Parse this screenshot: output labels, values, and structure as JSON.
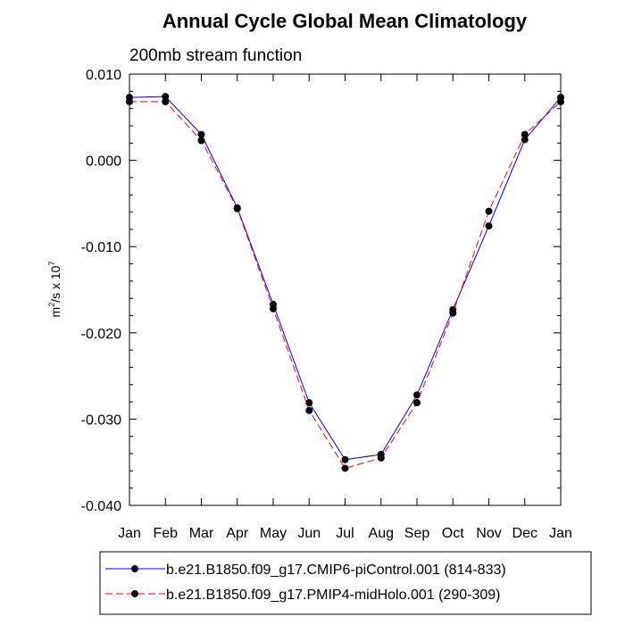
{
  "chart_data": {
    "type": "line",
    "title": "Annual Cycle Global Mean Climatology",
    "subtitle": "200mb stream function",
    "ylabel": {
      "base": "m",
      "base_sup": "2",
      "middle": "/s x 10",
      "middle_sup": "7"
    },
    "ylim": [
      -0.04,
      0.01
    ],
    "yticks": [
      {
        "value": 0.01,
        "label": "0.010"
      },
      {
        "value": 0.0,
        "label": "0.000"
      },
      {
        "value": -0.01,
        "label": "-0.010"
      },
      {
        "value": -0.02,
        "label": "-0.020"
      },
      {
        "value": -0.03,
        "label": "-0.030"
      },
      {
        "value": -0.04,
        "label": "-0.040"
      }
    ],
    "categories": [
      "Jan",
      "Feb",
      "Mar",
      "Apr",
      "May",
      "Jun",
      "Jul",
      "Aug",
      "Sep",
      "Oct",
      "Nov",
      "Dec",
      "Jan"
    ],
    "grid": false,
    "legend_position": "bottom",
    "series": [
      {
        "name": "b.e21.B1850.f09_g17.CMIP6-piControl.001 (814-833)",
        "color": "#0000ff",
        "dash": "solid",
        "values": [
          0.0073,
          0.0074,
          0.003,
          -0.0055,
          -0.0167,
          -0.0281,
          -0.0347,
          -0.0341,
          -0.0272,
          -0.0173,
          -0.0076,
          0.0024,
          0.0073
        ]
      },
      {
        "name": "b.e21.B1850.f09_g17.PMIP4-midHolo.001 (290-309)",
        "color": "#ff0000",
        "dash": "dashed",
        "values": [
          0.0068,
          0.0068,
          0.0023,
          -0.0056,
          -0.0172,
          -0.029,
          -0.0357,
          -0.0345,
          -0.0281,
          -0.0177,
          -0.0059,
          0.003,
          0.0068
        ]
      }
    ]
  }
}
